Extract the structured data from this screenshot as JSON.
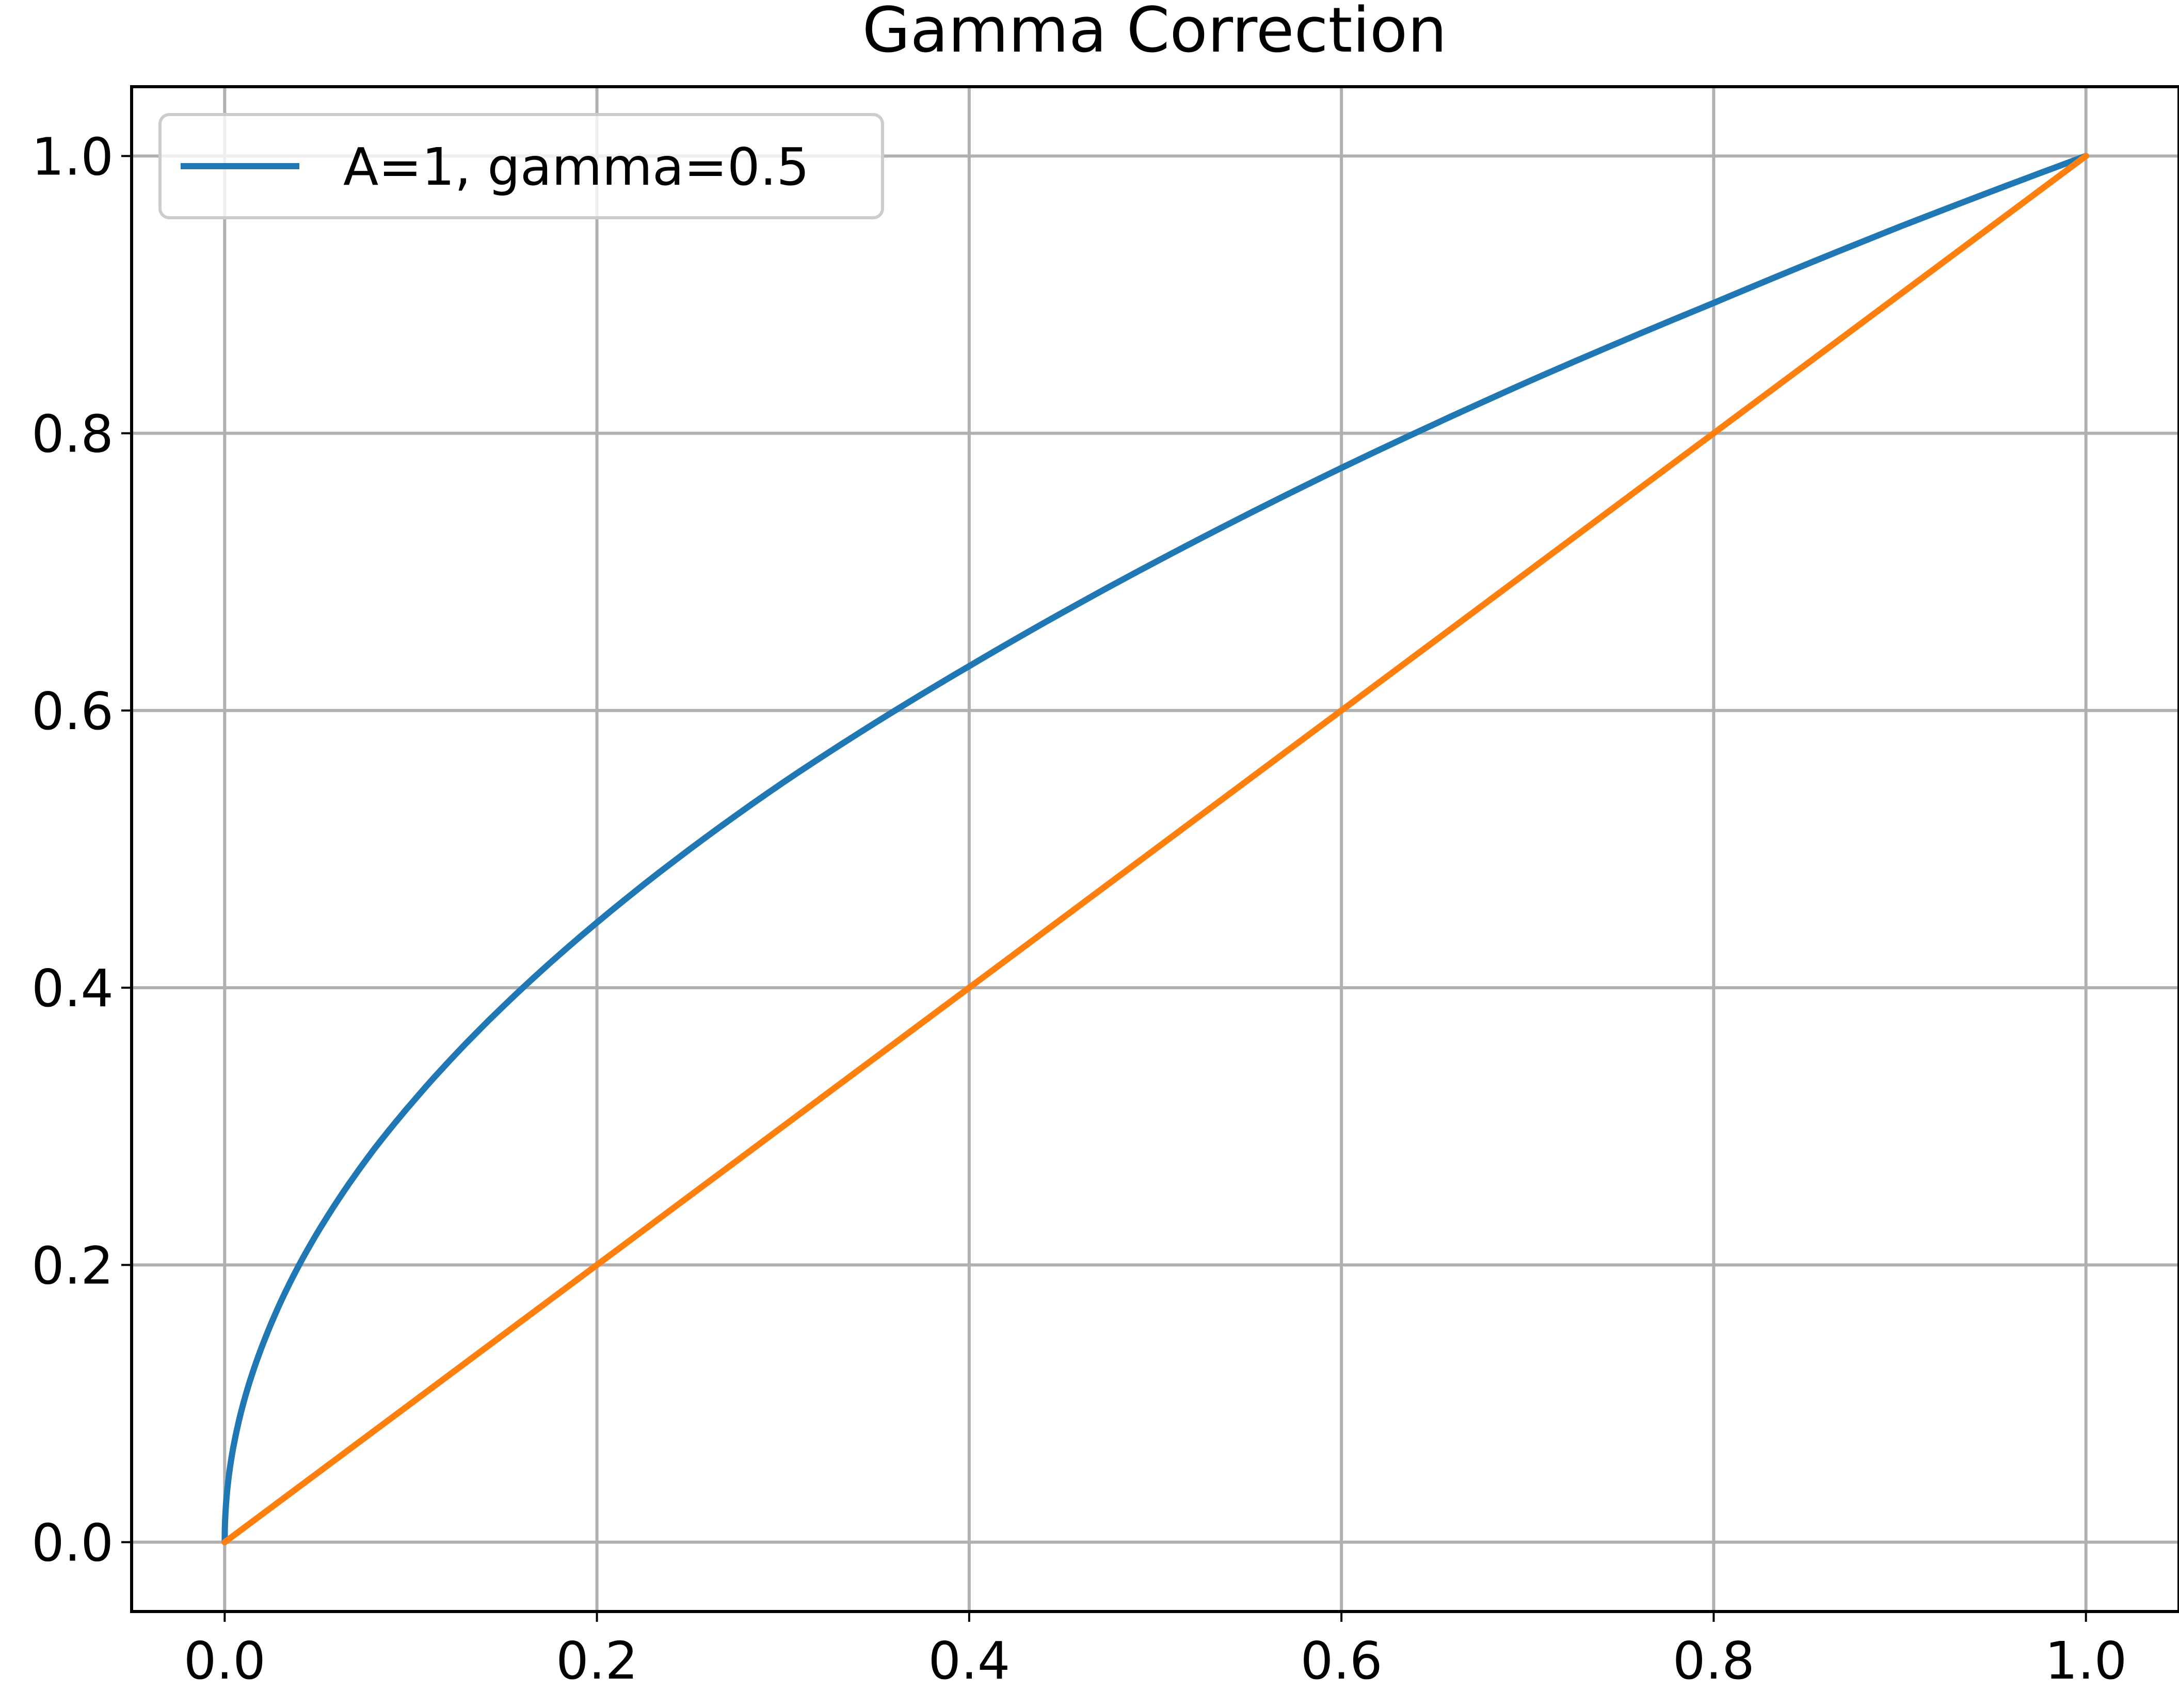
{
  "chart_data": {
    "type": "line",
    "title": "Gamma Correction",
    "xlabel": "",
    "ylabel": "",
    "xlim": [
      -0.05,
      1.05
    ],
    "ylim": [
      -0.05,
      1.05
    ],
    "xticks": [
      "0.0",
      "0.2",
      "0.4",
      "0.6",
      "0.8",
      "1.0"
    ],
    "yticks": [
      "0.0",
      "0.2",
      "0.4",
      "0.6",
      "0.8",
      "1.0"
    ],
    "grid": true,
    "legend_position": "top-left",
    "series": [
      {
        "name": "A=1, gamma=0.5",
        "color": "#1f77b4",
        "x": [
          0,
          0.001,
          0.005,
          0.01,
          0.02,
          0.04,
          0.06,
          0.08,
          0.1,
          0.15,
          0.2,
          0.3,
          0.4,
          0.5,
          0.6,
          0.7,
          0.8,
          0.9,
          1.0
        ],
        "y": [
          0,
          0.032,
          0.071,
          0.1,
          0.141,
          0.2,
          0.245,
          0.283,
          0.316,
          0.387,
          0.447,
          0.548,
          0.632,
          0.707,
          0.775,
          0.837,
          0.894,
          0.949,
          1.0
        ]
      },
      {
        "color": "#ff7f0e",
        "x": [
          0,
          1.0
        ],
        "y": [
          0,
          1.0
        ]
      }
    ]
  }
}
